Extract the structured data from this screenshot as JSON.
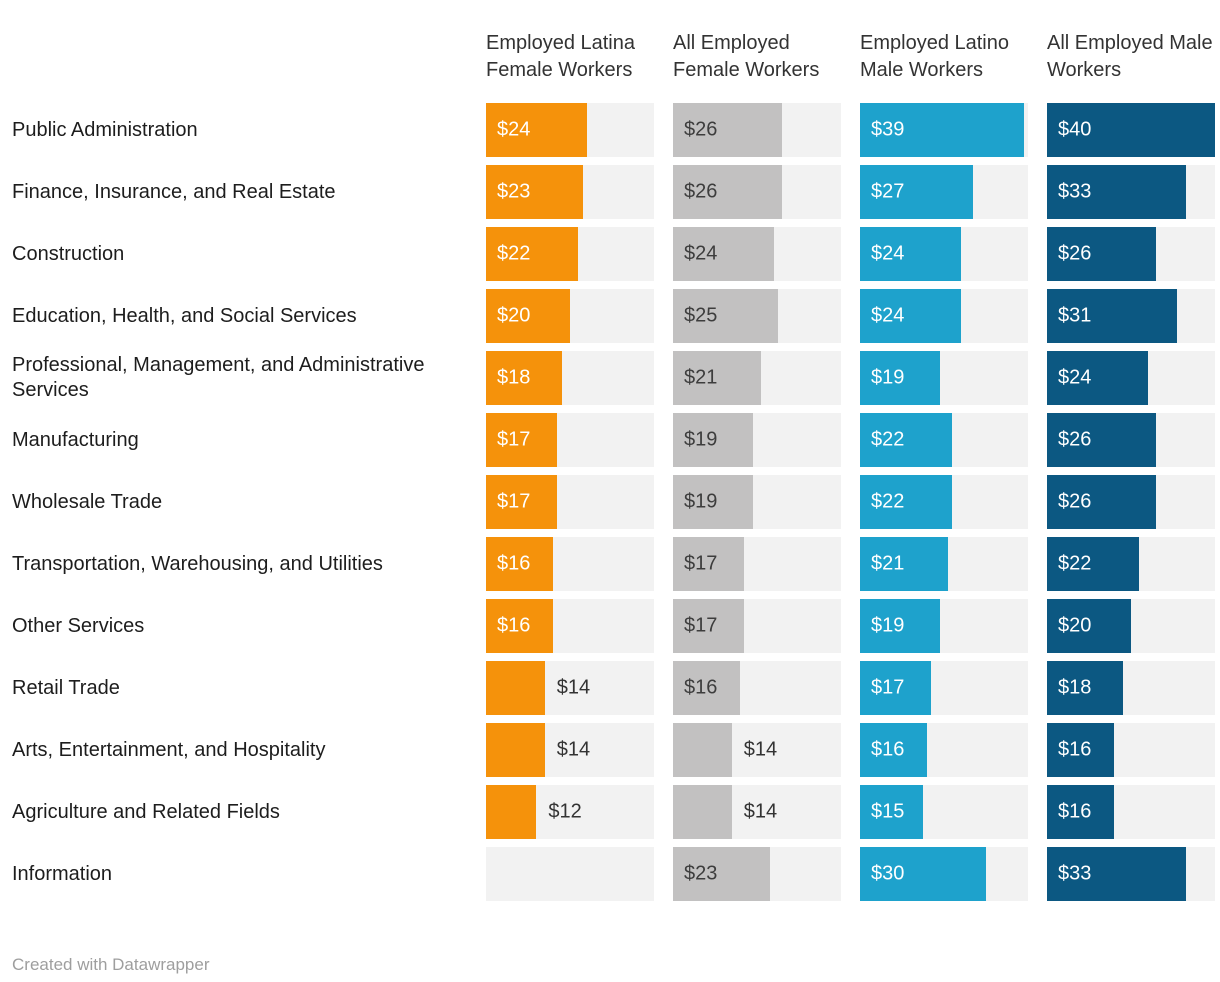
{
  "chart_data": {
    "type": "bar",
    "layout": "multi-column horizontal bars, one column per series, light-gray full tracks",
    "unit_prefix": "$",
    "scale_max": 40,
    "label_inside_min": 15,
    "grid": "off",
    "track_color": "#f2f2f2",
    "outside_label_color": "#333333",
    "categories": [
      "Public Administration",
      "Finance, Insurance, and Real Estate",
      "Construction",
      "Education, Health, and Social Services",
      "Professional, Management, and Administrative Services",
      "Manufacturing",
      "Wholesale Trade",
      "Transportation, Warehousing, and Utilities",
      "Other Services",
      "Retail Trade",
      "Arts, Entertainment, and Hospitality",
      "Agriculture and Related Fields",
      "Information"
    ],
    "series": [
      {
        "name": "Employed Latina Female Workers",
        "color": "#f5920b",
        "label_color_inside": "#ffffff",
        "values": [
          24,
          23,
          22,
          20,
          18,
          17,
          17,
          16,
          16,
          14,
          14,
          12,
          null
        ]
      },
      {
        "name": "All Employed Female Workers",
        "color": "#c2c1c1",
        "label_color_inside": "#3d3d3d",
        "values": [
          26,
          26,
          24,
          25,
          21,
          19,
          19,
          17,
          17,
          16,
          14,
          14,
          23
        ]
      },
      {
        "name": "Employed Latino Male Workers",
        "color": "#1ea2cc",
        "label_color_inside": "#ffffff",
        "values": [
          39,
          27,
          24,
          24,
          19,
          22,
          22,
          21,
          19,
          17,
          16,
          15,
          30
        ]
      },
      {
        "name": "All Employed Male Workers",
        "color": "#0c5882",
        "label_color_inside": "#ffffff",
        "values": [
          40,
          33,
          26,
          31,
          24,
          26,
          26,
          22,
          20,
          18,
          16,
          16,
          33
        ]
      }
    ]
  },
  "footer": {
    "credit": "Created with Datawrapper"
  }
}
